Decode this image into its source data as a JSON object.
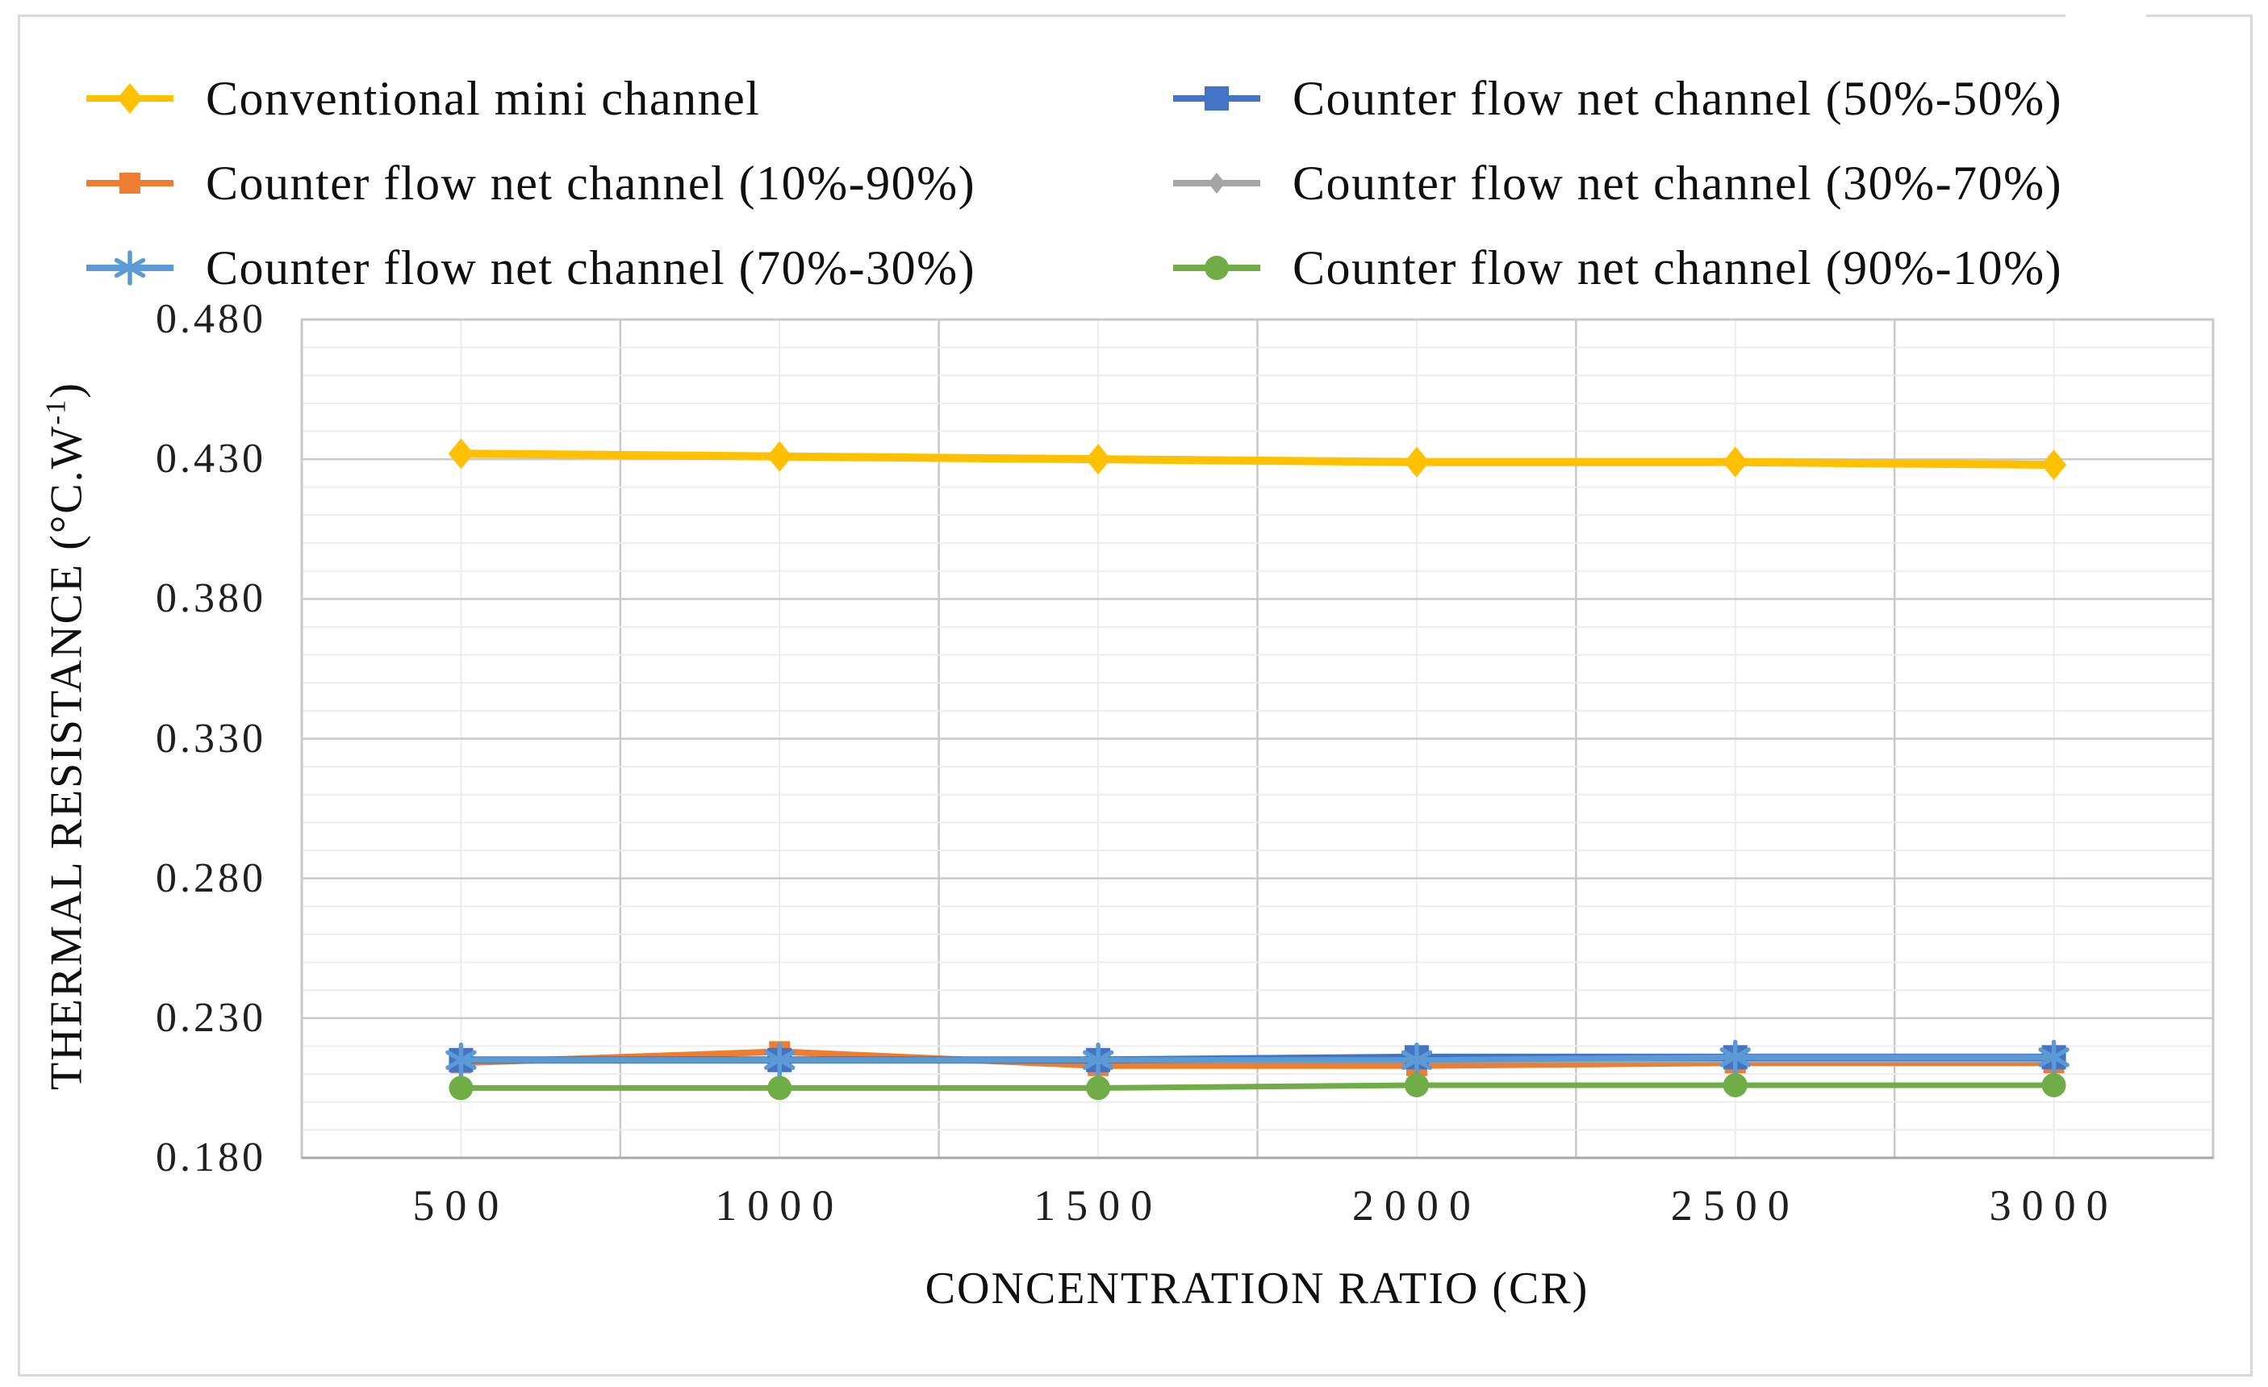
{
  "figure": {
    "background_color": "#ffffff",
    "border_color": "#d9d9d9"
  },
  "legend": {
    "position": "top",
    "columns": 2,
    "entries": [
      {
        "label": "Conventional mini channel",
        "series_index": 0,
        "column": 0,
        "row": 0
      },
      {
        "label": "Counter flow net channel (10%-90%)",
        "series_index": 1,
        "column": 0,
        "row": 1
      },
      {
        "label": "Counter flow net channel (70%-30%)",
        "series_index": 4,
        "column": 0,
        "row": 2
      },
      {
        "label": "Counter flow net channel (50%-50%)",
        "series_index": 3,
        "column": 1,
        "row": 0
      },
      {
        "label": "Counter flow net channel (30%-70%)",
        "series_index": 2,
        "column": 1,
        "row": 1
      },
      {
        "label": "Counter flow net channel (90%-10%)",
        "series_index": 5,
        "column": 1,
        "row": 2
      }
    ]
  },
  "chart_data": {
    "type": "line",
    "title": "",
    "xlabel": "CONCENTRATION RATIO (CR)",
    "ylabel": "THERMAL RESISTANCE (°C.W⁻¹)",
    "ylabel_parts": {
      "prefix": "THERMAL RESISTANCE (°C.W",
      "superscript": "-1",
      "suffix": ")"
    },
    "x": [
      500,
      1000,
      1500,
      2000,
      2500,
      3000
    ],
    "x_tick_labels": [
      "500",
      "1000",
      "1500",
      "2000",
      "2500",
      "3000"
    ],
    "y_tick_values": [
      0.48,
      0.43,
      0.38,
      0.33,
      0.28,
      0.23,
      0.18
    ],
    "y_tick_labels": [
      "0.480",
      "0.430",
      "0.380",
      "0.330",
      "0.280",
      "0.230",
      "0.180"
    ],
    "xlim": [
      250,
      3250
    ],
    "ylim": [
      0.18,
      0.48
    ],
    "y_minor_step": 0.01,
    "y_major_step": 0.05,
    "x_gridline_step": 250,
    "grid": true,
    "grid_minor_color": "#ececec",
    "grid_major_color": "#c9c9c9",
    "frame_color": "#c9c9c9",
    "axis_line_color": "#a8a8a8",
    "legend_text_color": "#0f0f0f",
    "series": [
      {
        "name": "Conventional mini channel",
        "color": "#FFC000",
        "marker": "diamond",
        "marker_size": 19,
        "line_width": 10,
        "values": [
          0.432,
          0.431,
          0.43,
          0.429,
          0.429,
          0.428
        ]
      },
      {
        "name": "Counter flow net channel (10%-90%)",
        "color": "#ED7D31",
        "marker": "square",
        "marker_size": 13,
        "line_width": 8,
        "values": [
          0.214,
          0.218,
          0.213,
          0.213,
          0.214,
          0.214
        ]
      },
      {
        "name": "Counter flow net channel (30%-70%)",
        "color": "#A5A5A5",
        "marker": "diamond",
        "marker_size": 13,
        "line_width": 7,
        "values": [
          0.215,
          0.215,
          0.215,
          0.215,
          0.215,
          0.215
        ]
      },
      {
        "name": "Counter flow net channel (50%-50%)",
        "color": "#4472C4",
        "marker": "square",
        "marker_size": 15,
        "line_width": 9,
        "values": [
          0.215,
          0.215,
          0.215,
          0.216,
          0.216,
          0.216
        ]
      },
      {
        "name": "Counter flow net channel (70%-30%)",
        "color": "#5B9BD5",
        "marker": "asterisk",
        "marker_size": 19,
        "line_width": 7,
        "values": [
          0.215,
          0.215,
          0.215,
          0.215,
          0.216,
          0.216
        ]
      },
      {
        "name": "Counter flow net channel (90%-10%)",
        "color": "#70AD47",
        "marker": "circle",
        "marker_size": 15,
        "line_width": 7,
        "values": [
          0.205,
          0.205,
          0.205,
          0.206,
          0.206,
          0.206
        ]
      }
    ]
  }
}
